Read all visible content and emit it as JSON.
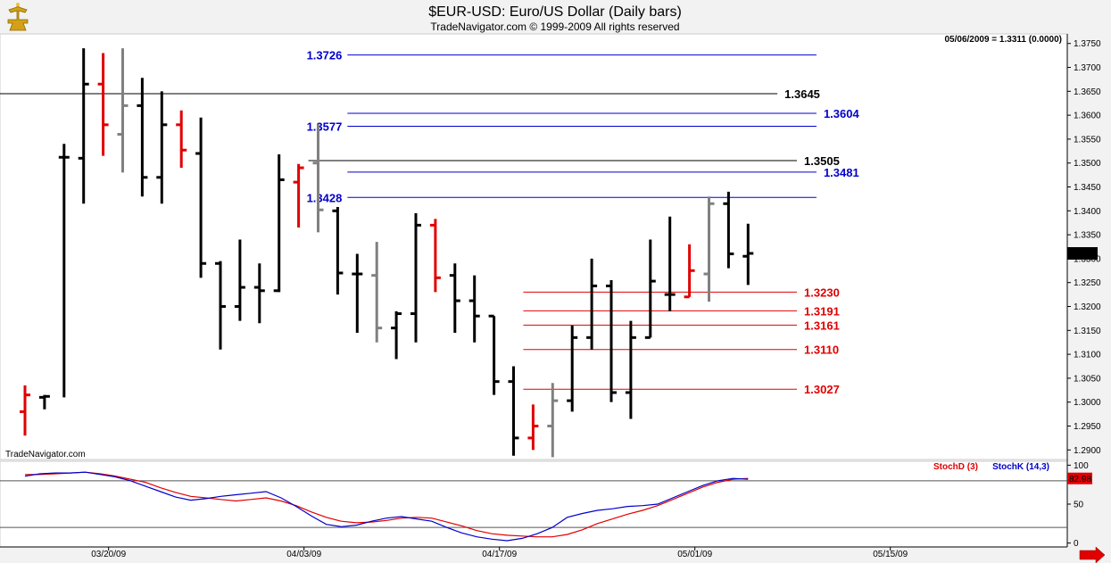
{
  "header": {
    "title": "$EUR-USD:  Euro/US Dollar  (Daily bars)",
    "subtitle": "TradeNavigator.com © 1999-2009 All rights reserved",
    "logo_icon": "gold-trophy-icon"
  },
  "readout": "05/06/2009 = 1.3311 (0.0000)",
  "watermark": "TradeNavigator.com",
  "current_price_label": "1.3311",
  "colors": {
    "up": "#000000",
    "down": "#e00000",
    "neutral": "#808080",
    "level_blue": "#0000cc",
    "level_black": "#000000",
    "level_red": "#e00000",
    "stochD": "#e00000",
    "stochK": "#0000cc"
  },
  "chart_data": [
    {
      "type": "ohlc",
      "title": "$EUR-USD:  Euro/US Dollar  (Daily bars)",
      "y_ticks": [
        "1.2900",
        "1.2950",
        "1.3000",
        "1.3050",
        "1.3100",
        "1.3150",
        "1.3200",
        "1.3250",
        "1.3300",
        "1.3350",
        "1.3400",
        "1.3450",
        "1.3500",
        "1.3550",
        "1.3600",
        "1.3650",
        "1.3700",
        "1.3750"
      ],
      "ylim": [
        1.288,
        1.377
      ],
      "x_labels": [
        "03/20/09",
        "04/03/09",
        "04/17/09",
        "05/01/09",
        "05/15/09"
      ],
      "x_label_bar_index": [
        3,
        13,
        23,
        33,
        43
      ],
      "bars": [
        {
          "o": 1.298,
          "h": 1.3035,
          "l": 1.293,
          "c": 1.3015,
          "color": "down"
        },
        {
          "o": 1.301,
          "h": 1.3015,
          "l": 1.2985,
          "c": 1.3012,
          "color": "up"
        },
        {
          "o": 1.3512,
          "h": 1.354,
          "l": 1.301,
          "c": 1.3512,
          "color": "up"
        },
        {
          "o": 1.351,
          "h": 1.374,
          "l": 1.3415,
          "c": 1.3665,
          "color": "up"
        },
        {
          "o": 1.3665,
          "h": 1.373,
          "l": 1.3515,
          "c": 1.358,
          "color": "down"
        },
        {
          "o": 1.356,
          "h": 1.374,
          "l": 1.348,
          "c": 1.362,
          "color": "neutral"
        },
        {
          "o": 1.362,
          "h": 1.3678,
          "l": 1.343,
          "c": 1.347,
          "color": "up"
        },
        {
          "o": 1.347,
          "h": 1.365,
          "l": 1.3415,
          "c": 1.358,
          "color": "up"
        },
        {
          "o": 1.358,
          "h": 1.361,
          "l": 1.349,
          "c": 1.3527,
          "color": "down"
        },
        {
          "o": 1.352,
          "h": 1.3595,
          "l": 1.326,
          "c": 1.329,
          "color": "up"
        },
        {
          "o": 1.329,
          "h": 1.3295,
          "l": 1.311,
          "c": 1.32,
          "color": "up"
        },
        {
          "o": 1.32,
          "h": 1.334,
          "l": 1.317,
          "c": 1.324,
          "color": "up"
        },
        {
          "o": 1.324,
          "h": 1.329,
          "l": 1.3165,
          "c": 1.3233,
          "color": "up"
        },
        {
          "o": 1.3233,
          "h": 1.3518,
          "l": 1.323,
          "c": 1.3465,
          "color": "up"
        },
        {
          "o": 1.346,
          "h": 1.3498,
          "l": 1.3365,
          "c": 1.349,
          "color": "down"
        },
        {
          "o": 1.35,
          "h": 1.3582,
          "l": 1.3355,
          "c": 1.3402,
          "color": "neutral"
        },
        {
          "o": 1.34,
          "h": 1.3408,
          "l": 1.3225,
          "c": 1.327,
          "color": "up"
        },
        {
          "o": 1.3268,
          "h": 1.331,
          "l": 1.3145,
          "c": 1.3268,
          "color": "up"
        },
        {
          "o": 1.3265,
          "h": 1.3335,
          "l": 1.3125,
          "c": 1.3155,
          "color": "neutral"
        },
        {
          "o": 1.3155,
          "h": 1.319,
          "l": 1.309,
          "c": 1.3185,
          "color": "up"
        },
        {
          "o": 1.3185,
          "h": 1.3395,
          "l": 1.3125,
          "c": 1.337,
          "color": "up"
        },
        {
          "o": 1.337,
          "h": 1.3383,
          "l": 1.323,
          "c": 1.326,
          "color": "down"
        },
        {
          "o": 1.3265,
          "h": 1.329,
          "l": 1.3145,
          "c": 1.3212,
          "color": "up"
        },
        {
          "o": 1.3212,
          "h": 1.3265,
          "l": 1.3125,
          "c": 1.318,
          "color": "up"
        },
        {
          "o": 1.318,
          "h": 1.318,
          "l": 1.3015,
          "c": 1.3043,
          "color": "up"
        },
        {
          "o": 1.3043,
          "h": 1.3075,
          "l": 1.2888,
          "c": 1.2925,
          "color": "up"
        },
        {
          "o": 1.2925,
          "h": 1.2995,
          "l": 1.29,
          "c": 1.295,
          "color": "down"
        },
        {
          "o": 1.295,
          "h": 1.304,
          "l": 1.2885,
          "c": 1.3003,
          "color": "neutral"
        },
        {
          "o": 1.3003,
          "h": 1.316,
          "l": 1.298,
          "c": 1.3135,
          "color": "up"
        },
        {
          "o": 1.3135,
          "h": 1.33,
          "l": 1.311,
          "c": 1.3243,
          "color": "up"
        },
        {
          "o": 1.3243,
          "h": 1.3255,
          "l": 1.3,
          "c": 1.302,
          "color": "up"
        },
        {
          "o": 1.302,
          "h": 1.317,
          "l": 1.2965,
          "c": 1.3135,
          "color": "up"
        },
        {
          "o": 1.3135,
          "h": 1.334,
          "l": 1.3135,
          "c": 1.3253,
          "color": "up"
        },
        {
          "o": 1.3225,
          "h": 1.3388,
          "l": 1.319,
          "c": 1.3225,
          "color": "up"
        },
        {
          "o": 1.322,
          "h": 1.333,
          "l": 1.322,
          "c": 1.3275,
          "color": "down"
        },
        {
          "o": 1.3268,
          "h": 1.343,
          "l": 1.321,
          "c": 1.3415,
          "color": "neutral"
        },
        {
          "o": 1.3415,
          "h": 1.344,
          "l": 1.328,
          "c": 1.331,
          "color": "up"
        },
        {
          "o": 1.3305,
          "h": 1.3373,
          "l": 1.3245,
          "c": 1.3311,
          "color": "up"
        }
      ],
      "levels": [
        {
          "value": 1.3726,
          "label": "1.3726",
          "color": "level_blue",
          "label_side": "left",
          "x_from_bar": 16.5,
          "x_to_bar": 40.5
        },
        {
          "value": 1.3645,
          "label": "1.3645",
          "color": "level_black",
          "label_side": "right",
          "x_from_bar": 0,
          "x_to_bar": 38.5
        },
        {
          "value": 1.3604,
          "label": "1.3604",
          "color": "level_blue",
          "label_side": "right",
          "x_from_bar": 16.5,
          "x_to_bar": 40.5
        },
        {
          "value": 1.3577,
          "label": "1.3577",
          "color": "level_blue",
          "label_side": "left",
          "x_from_bar": 16.5,
          "x_to_bar": 40.5
        },
        {
          "value": 1.3505,
          "label": "1.3505",
          "color": "level_black",
          "label_side": "right",
          "x_from_bar": 14.5,
          "x_to_bar": 39.5
        },
        {
          "value": 1.3481,
          "label": "1.3481",
          "color": "level_blue",
          "label_side": "right",
          "x_from_bar": 16.5,
          "x_to_bar": 40.5
        },
        {
          "value": 1.3428,
          "label": "1.3428",
          "color": "level_blue",
          "label_side": "left",
          "x_from_bar": 16.5,
          "x_to_bar": 40.5
        },
        {
          "value": 1.323,
          "label": "1.3230",
          "color": "level_red",
          "label_side": "right",
          "x_from_bar": 25.5,
          "x_to_bar": 39.5
        },
        {
          "value": 1.3191,
          "label": "1.3191",
          "color": "level_red",
          "label_side": "right",
          "x_from_bar": 25.5,
          "x_to_bar": 39.5
        },
        {
          "value": 1.3161,
          "label": "1.3161",
          "color": "level_red",
          "label_side": "right",
          "x_from_bar": 25.5,
          "x_to_bar": 39.5
        },
        {
          "value": 1.311,
          "label": "1.3110",
          "color": "level_red",
          "label_side": "right",
          "x_from_bar": 25.5,
          "x_to_bar": 39.5
        },
        {
          "value": 1.3027,
          "label": "1.3027",
          "color": "level_red",
          "label_side": "right",
          "x_from_bar": 25.5,
          "x_to_bar": 39.5
        }
      ]
    },
    {
      "type": "line",
      "legend": [
        "StochD (3)",
        "StochK (14,3)"
      ],
      "y_ticks": [
        "100",
        "50",
        "0"
      ],
      "ylim": [
        -5,
        105
      ],
      "reference_lines": [
        80,
        20
      ],
      "current_value_label": "82.98",
      "series": [
        {
          "name": "StochD (3)",
          "color": "stochD",
          "values": [
            88,
            88,
            89,
            90,
            91,
            89,
            86,
            82,
            78,
            71,
            65,
            60,
            58,
            56,
            54,
            56,
            58,
            54,
            48,
            40,
            33,
            28,
            26,
            27,
            29,
            32,
            33,
            32,
            27,
            22,
            16,
            12,
            10,
            9,
            8,
            8,
            11,
            17,
            25,
            31,
            37,
            42,
            48,
            56,
            64,
            72,
            78,
            82,
            83
          ]
        },
        {
          "name": "StochK (14,3)",
          "color": "stochK",
          "values": [
            86,
            89,
            90,
            90,
            91,
            88,
            85,
            80,
            73,
            66,
            59,
            55,
            57,
            60,
            62,
            64,
            66,
            58,
            47,
            35,
            24,
            21,
            23,
            28,
            32,
            34,
            31,
            28,
            20,
            13,
            8,
            5,
            3,
            6,
            12,
            20,
            33,
            38,
            42,
            44,
            47,
            48,
            50,
            58,
            66,
            74,
            80,
            83,
            82
          ]
        }
      ]
    }
  ]
}
